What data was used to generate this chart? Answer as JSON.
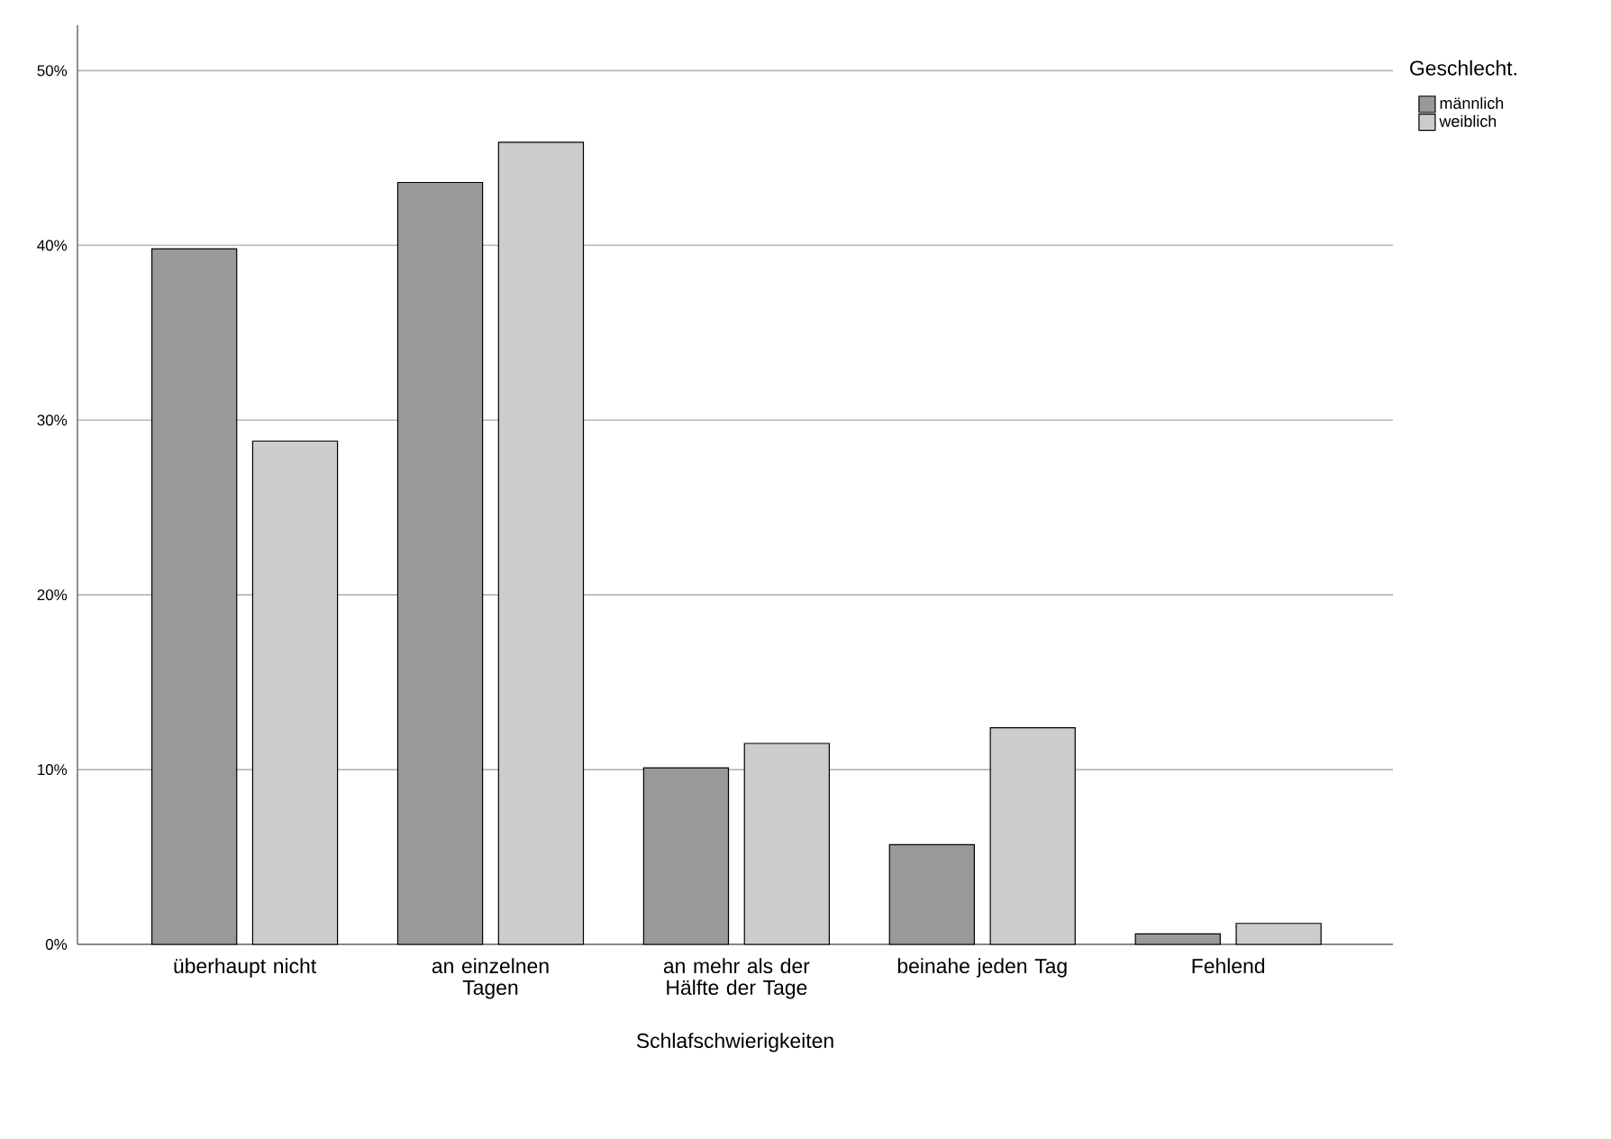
{
  "chart_data": {
    "type": "bar",
    "xlabel": "Schlafschwierigkeiten",
    "legend_title": "Geschlecht.",
    "categories": [
      "überhaupt nicht",
      "an einzelnen Tagen",
      "an mehr als der Hälfte der Tage",
      "beinahe jeden Tag",
      "Fehlend"
    ],
    "series": [
      {
        "name": "männlich",
        "color": "#999999",
        "values": [
          39.8,
          43.6,
          10.1,
          5.7,
          0.6
        ]
      },
      {
        "name": "weiblich",
        "color": "#cccccc",
        "values": [
          28.8,
          45.9,
          11.5,
          12.4,
          1.2
        ]
      }
    ],
    "ylim": [
      0,
      52.6
    ],
    "yticks": [
      {
        "value": 0,
        "label": "0%"
      },
      {
        "value": 10,
        "label": "10%"
      },
      {
        "value": 20,
        "label": "20%"
      },
      {
        "value": 30,
        "label": "30%"
      },
      {
        "value": 40,
        "label": "40%"
      },
      {
        "value": 50,
        "label": "50%"
      }
    ],
    "grid": "y",
    "legend": "top right"
  }
}
